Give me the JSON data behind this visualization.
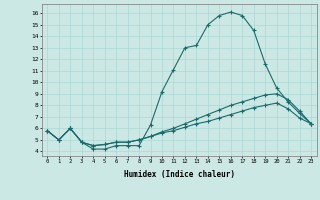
{
  "title": "",
  "xlabel": "Humidex (Indice chaleur)",
  "ylabel": "",
  "bg_color": "#cce8e4",
  "line_color": "#1a6b6b",
  "x_ticks": [
    0,
    1,
    2,
    3,
    4,
    5,
    6,
    7,
    8,
    9,
    10,
    11,
    12,
    13,
    14,
    15,
    16,
    17,
    18,
    19,
    20,
    21,
    22,
    23
  ],
  "y_ticks": [
    4,
    5,
    6,
    7,
    8,
    9,
    10,
    11,
    12,
    13,
    14,
    15,
    16
  ],
  "ylim": [
    3.6,
    16.8
  ],
  "xlim": [
    -0.5,
    23.5
  ],
  "curve1_x": [
    0,
    1,
    2,
    3,
    4,
    5,
    6,
    7,
    8,
    9,
    10,
    11,
    12,
    13,
    14,
    15,
    16,
    17,
    18,
    19,
    20,
    21,
    22,
    23
  ],
  "curve1_y": [
    5.8,
    5.0,
    6.0,
    4.8,
    4.2,
    4.2,
    4.5,
    4.5,
    4.5,
    6.3,
    9.2,
    11.1,
    13.0,
    13.2,
    15.0,
    15.8,
    16.1,
    15.8,
    14.5,
    11.6,
    9.5,
    8.3,
    7.3,
    6.4
  ],
  "curve2_x": [
    0,
    1,
    2,
    3,
    4,
    5,
    6,
    7,
    8,
    9,
    10,
    11,
    12,
    13,
    14,
    15,
    16,
    17,
    18,
    19,
    20,
    21,
    22,
    23
  ],
  "curve2_y": [
    5.8,
    5.0,
    6.0,
    4.8,
    4.5,
    4.6,
    4.8,
    4.8,
    5.0,
    5.3,
    5.7,
    6.0,
    6.4,
    6.8,
    7.2,
    7.6,
    8.0,
    8.3,
    8.6,
    8.9,
    9.0,
    8.5,
    7.5,
    6.4
  ],
  "curve3_x": [
    0,
    1,
    2,
    3,
    4,
    5,
    6,
    7,
    8,
    9,
    10,
    11,
    12,
    13,
    14,
    15,
    16,
    17,
    18,
    19,
    20,
    21,
    22,
    23
  ],
  "curve3_y": [
    5.8,
    5.0,
    6.0,
    4.8,
    4.5,
    4.6,
    4.8,
    4.8,
    5.0,
    5.3,
    5.6,
    5.8,
    6.1,
    6.4,
    6.6,
    6.9,
    7.2,
    7.5,
    7.8,
    8.0,
    8.2,
    7.7,
    6.9,
    6.4
  ]
}
